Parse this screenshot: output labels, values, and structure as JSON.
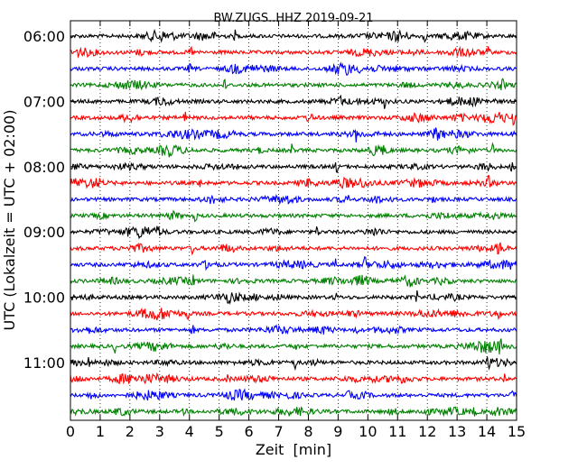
{
  "chart_data": {
    "type": "line",
    "title": "BW.ZUGS..HHZ 2019-09-21",
    "xlabel": "Zeit  [min]",
    "ylabel": "UTC (Lokalzeit = UTC + 02:00)",
    "xlim": [
      0,
      15
    ],
    "xticks": [
      "0",
      "1",
      "2",
      "3",
      "4",
      "5",
      "6",
      "7",
      "8",
      "9",
      "10",
      "11",
      "12",
      "13",
      "14",
      "15"
    ],
    "ytick_labels": [
      "06:00",
      "07:00",
      "08:00",
      "09:00",
      "10:00",
      "11:00"
    ],
    "grid": "vertical-dotted",
    "trace_colors": [
      "#000000",
      "#ff0000",
      "#0000ff",
      "#008000"
    ],
    "traces": [
      {
        "start": "06:00",
        "events": [
          5.55,
          11.9
        ]
      },
      {
        "start": "06:15",
        "events": [
          4.05,
          14.05
        ]
      },
      {
        "start": "06:30",
        "events": [
          4.0,
          9.0,
          9.3
        ]
      },
      {
        "start": "06:45",
        "events": [
          5.2,
          14.5
        ]
      },
      {
        "start": "07:00",
        "events": [
          9.05,
          10.55
        ]
      },
      {
        "start": "07:15",
        "events": [
          3.85,
          14.9
        ]
      },
      {
        "start": "07:30",
        "events": [
          9.6,
          12.3
        ]
      },
      {
        "start": "07:45",
        "events": [
          7.45,
          14.2
        ]
      },
      {
        "start": "08:00",
        "events": [
          8.95,
          14.85
        ]
      },
      {
        "start": "08:15",
        "events": [
          4.35,
          14.05
        ]
      },
      {
        "start": "08:30",
        "events": [
          9.3,
          10.75
        ]
      },
      {
        "start": "08:45",
        "events": [
          4.2,
          14.2
        ]
      },
      {
        "start": "09:00",
        "events": [
          2.95,
          8.3
        ]
      },
      {
        "start": "09:15",
        "events": [
          4.1,
          14.4
        ]
      },
      {
        "start": "09:30",
        "events": [
          8.9,
          9.9
        ]
      },
      {
        "start": "09:45",
        "events": [
          4.1
        ]
      },
      {
        "start": "10:00",
        "events": [
          8.9,
          11.65
        ]
      },
      {
        "start": "10:15",
        "events": [
          3.95,
          14.4
        ]
      },
      {
        "start": "10:30",
        "events": [
          4.1,
          9.6
        ]
      },
      {
        "start": "10:45",
        "events": [
          1.5,
          7.55,
          14.45
        ]
      },
      {
        "start": "11:00",
        "events": [
          0.6,
          7.55,
          14.05
        ]
      },
      {
        "start": "11:15",
        "events": [
          5.3,
          14.6
        ]
      },
      {
        "start": "11:30",
        "events": [
          9.35,
          14.85
        ]
      },
      {
        "start": "11:45",
        "events": [
          3.85,
          13.6
        ]
      }
    ]
  }
}
